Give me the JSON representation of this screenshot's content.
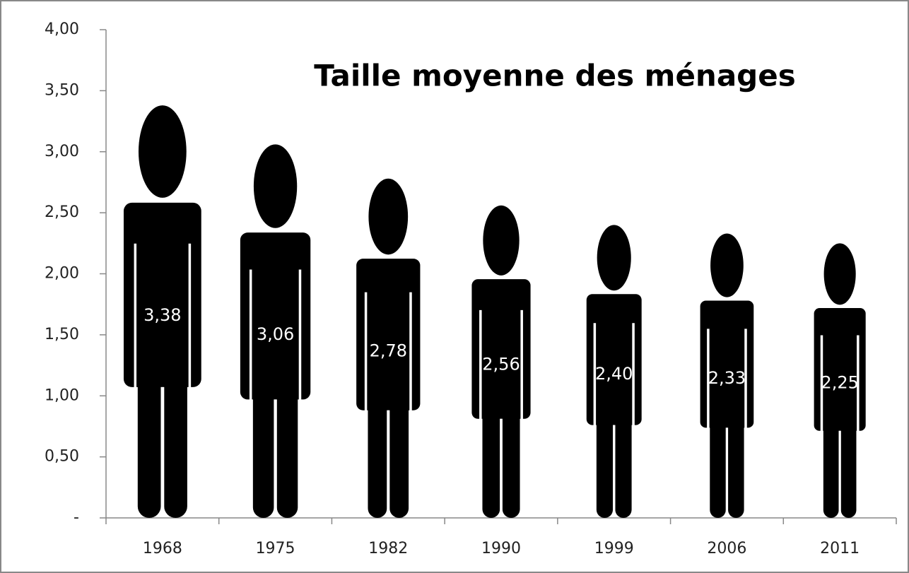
{
  "chart_data": {
    "type": "pictogram-bar",
    "title": "Taille moyenne des ménages",
    "categories": [
      "1968",
      "1975",
      "1982",
      "1990",
      "1999",
      "2006",
      "2011"
    ],
    "values": [
      3.38,
      3.06,
      2.78,
      2.56,
      2.4,
      2.33,
      2.25
    ],
    "value_labels": [
      "3,38",
      "3,06",
      "2,78",
      "2,56",
      "2,40",
      "2,33",
      "2,25"
    ],
    "color": "#000000",
    "ylim": [
      0,
      4
    ],
    "yticks": [
      {
        "value": 0,
        "label": "-"
      },
      {
        "value": 0.5,
        "label": "0,50"
      },
      {
        "value": 1,
        "label": "1,00"
      },
      {
        "value": 1.5,
        "label": "1,50"
      },
      {
        "value": 2,
        "label": "2,00"
      },
      {
        "value": 2.5,
        "label": "2,50"
      },
      {
        "value": 3,
        "label": "3,00"
      },
      {
        "value": 3.5,
        "label": "3,50"
      },
      {
        "value": 4,
        "label": "4,00"
      }
    ],
    "grid": false
  }
}
